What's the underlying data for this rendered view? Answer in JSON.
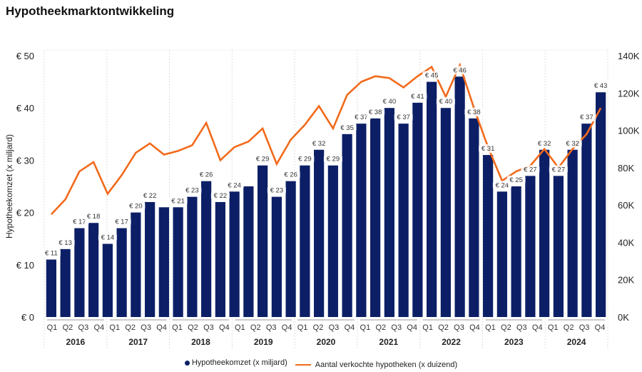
{
  "title": "Hypotheekmarktontwikkeling",
  "chart_data": {
    "type": "bar+line",
    "title": "Hypotheekmarktontwikkeling",
    "ylabel": "Hypotheekomzet (x miljard)",
    "y2label": "",
    "ylim": [
      0,
      50
    ],
    "y2lim": [
      0,
      140000
    ],
    "yticks": [
      "€ 0",
      "€ 10",
      "€ 20",
      "€ 30",
      "€ 40",
      "€ 50"
    ],
    "y2ticks": [
      "0K",
      "20K",
      "40K",
      "60K",
      "80K",
      "100K",
      "120K",
      "140K"
    ],
    "years": [
      "2016",
      "2017",
      "2018",
      "2019",
      "2020",
      "2021",
      "2022",
      "2023",
      "2024"
    ],
    "quarters": [
      "Q1",
      "Q2",
      "Q3",
      "Q4"
    ],
    "grid": "vertical-dashed-year-separators",
    "legend_position": "bottom",
    "series": [
      {
        "name": "Hypotheekomzet (x miljard)",
        "type": "bar",
        "color": "#0c1f66",
        "values": [
          11,
          13,
          17,
          18,
          14,
          17,
          20,
          22,
          21,
          21,
          23,
          26,
          22,
          24,
          25,
          29,
          23,
          26,
          29,
          32,
          29,
          35,
          37,
          38,
          40,
          37,
          41,
          45,
          40,
          46,
          38,
          31,
          24,
          25,
          27,
          32,
          27,
          32,
          37,
          43
        ],
        "labels": [
          "€ 11",
          "€ 13",
          "€ 17",
          "€ 18",
          "€ 14",
          "€ 17",
          "€ 20",
          "€ 22",
          "",
          "€ 21",
          "€ 23",
          "€ 26",
          "€ 22",
          "€ 24",
          "",
          "€ 29",
          "€ 23",
          "€ 26",
          "€ 29",
          "€ 32",
          "€ 29",
          "€ 35",
          "€ 37",
          "€ 38",
          "€ 40",
          "€ 37",
          "€ 41",
          "€ 45",
          "€ 40",
          "€ 46",
          "€ 38",
          "€ 31",
          "€ 24",
          "€ 25",
          "€ 27",
          "€ 32",
          "€ 27",
          "€ 32",
          "€ 37",
          "€ 43"
        ]
      },
      {
        "name": "Aantal verkochte hypotheken (x duizend)",
        "type": "line",
        "color": "#f26a1b",
        "values": [
          55000,
          63000,
          78000,
          83000,
          66000,
          76000,
          88000,
          93000,
          87000,
          89000,
          92000,
          104000,
          84000,
          91000,
          94000,
          101000,
          82000,
          95000,
          103000,
          113000,
          101000,
          119000,
          126000,
          129000,
          128000,
          123000,
          129000,
          134000,
          118000,
          135000,
          112000,
          91000,
          73000,
          78000,
          81000,
          90000,
          80000,
          90000,
          98000,
          112000
        ]
      }
    ]
  },
  "legend": {
    "bar_label": "Hypotheekomzet (x miljard)",
    "line_label": "Aantal verkochte hypotheken (x duizend)"
  }
}
